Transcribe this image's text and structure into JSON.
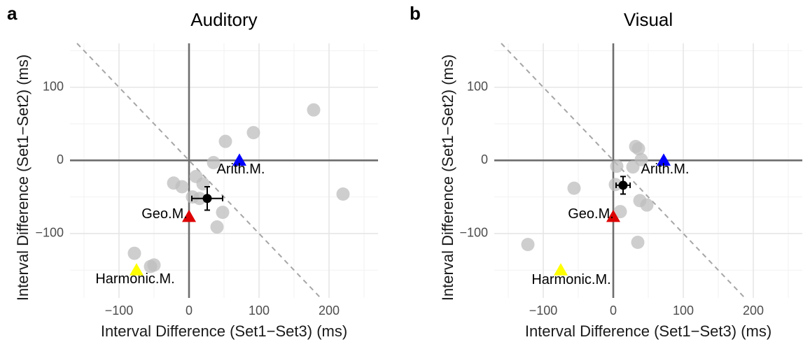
{
  "chart_data": [
    {
      "type": "scatter",
      "panel_label": "a",
      "title": "Auditory",
      "xlabel": "Interval Difference (Set1−Set3) (ms)",
      "ylabel": "Interval Difference (Set1−Set2) (ms)",
      "xlim": [
        -170,
        270
      ],
      "ylim": [
        -188,
        160
      ],
      "x_ticks": [
        -100,
        0,
        100,
        200
      ],
      "x_tick_labels": [
        "−100",
        "0",
        "100",
        "200"
      ],
      "y_ticks": [
        -100,
        0,
        100
      ],
      "y_tick_labels": [
        "−100",
        "0",
        "100"
      ],
      "grid": true,
      "reference_line": {
        "slope": -1,
        "intercept": 0,
        "style": "dashed"
      },
      "participants": {
        "color": "#bebebe",
        "points": [
          {
            "x": 178,
            "y": 69
          },
          {
            "x": 92,
            "y": 38
          },
          {
            "x": 52,
            "y": 26
          },
          {
            "x": 220,
            "y": -46
          },
          {
            "x": 35,
            "y": -3
          },
          {
            "x": 10,
            "y": -22
          },
          {
            "x": -22,
            "y": -31
          },
          {
            "x": -10,
            "y": -36
          },
          {
            "x": 5,
            "y": -50
          },
          {
            "x": 20,
            "y": -32
          },
          {
            "x": 15,
            "y": -52
          },
          {
            "x": 48,
            "y": -71
          },
          {
            "x": 40,
            "y": -91
          },
          {
            "x": -78,
            "y": -127
          },
          {
            "x": -50,
            "y": -143
          },
          {
            "x": -55,
            "y": -145
          }
        ]
      },
      "mean": {
        "x": 26,
        "y": -52,
        "xerr": 22,
        "yerr": 16,
        "color": "#000000"
      },
      "references": [
        {
          "name": "Arith.M.",
          "x": 72,
          "y": 0,
          "color": "#0000ff",
          "label_dx": 2,
          "label_dy": -13,
          "anchor": "middle"
        },
        {
          "name": "Geo.M.",
          "x": 0,
          "y": -77,
          "color": "#dd0000",
          "label_dx": -35,
          "label_dy": 3,
          "anchor": "middle"
        },
        {
          "name": "Harmonic.M.",
          "x": -75,
          "y": -150,
          "color": "#ffff00",
          "label_dx": -2,
          "label_dy": -13,
          "anchor": "middle"
        }
      ]
    },
    {
      "type": "scatter",
      "panel_label": "b",
      "title": "Visual",
      "xlabel": "Interval Difference (Set1−Set3) (ms)",
      "ylabel": "Interval Difference (Set1−Set2) (ms)",
      "xlim": [
        -170,
        270
      ],
      "ylim": [
        -188,
        160
      ],
      "x_ticks": [
        -100,
        0,
        100,
        200
      ],
      "x_tick_labels": [
        "−100",
        "0",
        "100",
        "200"
      ],
      "y_ticks": [
        -100,
        0,
        100
      ],
      "y_tick_labels": [
        "−100",
        "0",
        "100"
      ],
      "grid": true,
      "reference_line": {
        "slope": -1,
        "intercept": 0,
        "style": "dashed"
      },
      "participants": {
        "color": "#bebebe",
        "points": [
          {
            "x": 32,
            "y": 19
          },
          {
            "x": 36,
            "y": 16
          },
          {
            "x": 40,
            "y": 1
          },
          {
            "x": 28,
            "y": -9
          },
          {
            "x": 5,
            "y": -8
          },
          {
            "x": 3,
            "y": -33
          },
          {
            "x": -56,
            "y": -38
          },
          {
            "x": 38,
            "y": -55
          },
          {
            "x": 48,
            "y": -61
          },
          {
            "x": 10,
            "y": -70
          },
          {
            "x": 35,
            "y": -112
          },
          {
            "x": -122,
            "y": -115
          }
        ]
      },
      "mean": {
        "x": 14,
        "y": -34,
        "xerr": 10,
        "yerr": 12,
        "color": "#000000"
      },
      "references": [
        {
          "name": "Arith.M.",
          "x": 72,
          "y": 0,
          "color": "#0000ff",
          "label_dx": 2,
          "label_dy": -13,
          "anchor": "middle"
        },
        {
          "name": "Geo.M.",
          "x": 0,
          "y": -77,
          "color": "#dd0000",
          "label_dx": -32,
          "label_dy": 3,
          "anchor": "middle"
        },
        {
          "name": "Harmonic.M.",
          "x": -75,
          "y": -150,
          "color": "#ffff00",
          "label_dx": 15,
          "label_dy": -14,
          "anchor": "middle"
        }
      ]
    }
  ]
}
